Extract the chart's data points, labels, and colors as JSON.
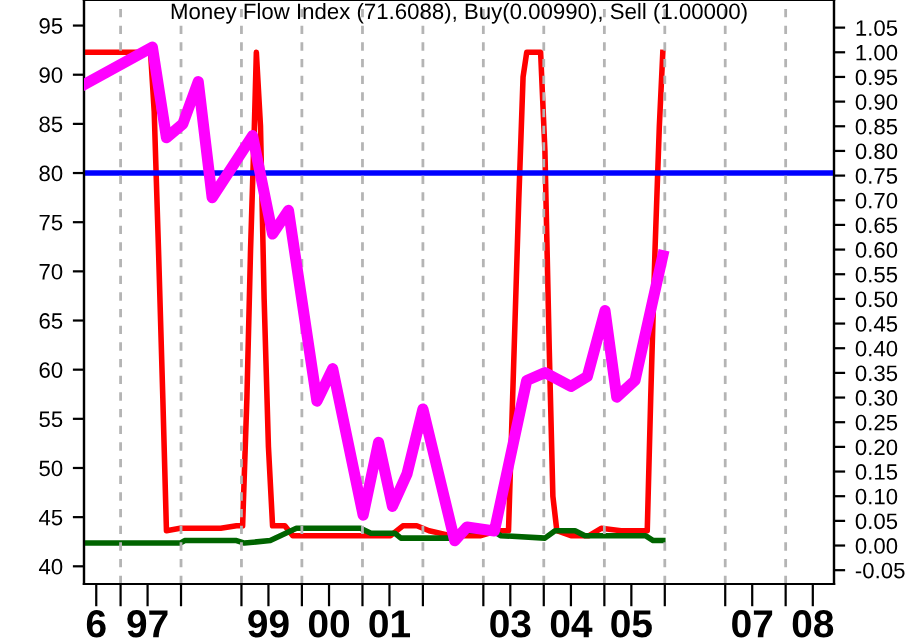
{
  "chart_data": {
    "type": "line",
    "title": "Money Flow Index (71.6088), Buy(0.00990), Sell (1.00000)",
    "xlim": [
      "1996-05-25",
      "2008-10-19"
    ],
    "ylim": [
      38.2,
      97.6
    ],
    "y2lim": [
      -0.078,
      1.106
    ],
    "xticks": [
      {
        "value": "1996-08-07",
        "label": "6"
      },
      {
        "value": "1997-01-01",
        "label": null
      },
      {
        "value": "1997-06-13",
        "label": "97"
      },
      {
        "value": "1998-01-01",
        "label": null
      },
      {
        "value": "1999-01-01",
        "label": null
      },
      {
        "value": "1999-06-13",
        "label": "99"
      },
      {
        "value": "2000-01-01",
        "label": null
      },
      {
        "value": "2000-06-13",
        "label": "00"
      },
      {
        "value": "2001-01-01",
        "label": null
      },
      {
        "value": "2001-06-13",
        "label": "01"
      },
      {
        "value": "2002-01-01",
        "label": null
      },
      {
        "value": "2003-01-01",
        "label": null
      },
      {
        "value": "2003-06-13",
        "label": "03"
      },
      {
        "value": "2004-01-01",
        "label": null
      },
      {
        "value": "2004-06-13",
        "label": "04"
      },
      {
        "value": "2005-01-01",
        "label": null
      },
      {
        "value": "2005-06-13",
        "label": "05"
      },
      {
        "value": "2006-01-01",
        "label": null
      },
      {
        "value": "2007-01-01",
        "label": null
      },
      {
        "value": "2007-06-13",
        "label": "07"
      },
      {
        "value": "2008-01-01",
        "label": null
      },
      {
        "value": "2008-06-13",
        "label": "08"
      }
    ],
    "yticks": [
      40,
      45,
      50,
      55,
      60,
      65,
      70,
      75,
      80,
      85,
      90,
      95
    ],
    "y2ticks": [
      {
        "value": -0.05,
        "label": "-0.05"
      },
      {
        "value": 0,
        "label": "0.00"
      },
      {
        "value": 0.05,
        "label": "0.05"
      },
      {
        "value": 0.1,
        "label": "0.10"
      },
      {
        "value": 0.15,
        "label": "0.15"
      },
      {
        "value": 0.2,
        "label": "0.20"
      },
      {
        "value": 0.25,
        "label": "0.25"
      },
      {
        "value": 0.3,
        "label": "0.30"
      },
      {
        "value": 0.35,
        "label": "0.35"
      },
      {
        "value": 0.4,
        "label": "0.40"
      },
      {
        "value": 0.45,
        "label": "0.45"
      },
      {
        "value": 0.5,
        "label": "0.50"
      },
      {
        "value": 0.55,
        "label": "0.55"
      },
      {
        "value": 0.6,
        "label": "0.60"
      },
      {
        "value": 0.65,
        "label": "0.65"
      },
      {
        "value": 0.7,
        "label": "0.70"
      },
      {
        "value": 0.75,
        "label": "0.75"
      },
      {
        "value": 0.8,
        "label": "0.80"
      },
      {
        "value": 0.85,
        "label": "0.85"
      },
      {
        "value": 0.9,
        "label": "0.90"
      },
      {
        "value": 0.95,
        "label": "0.95"
      },
      {
        "value": 1.0,
        "label": "1.00"
      },
      {
        "value": 1.05,
        "label": "1.05"
      }
    ],
    "ref_lines": [
      {
        "axis": "y",
        "value": 80,
        "color": "#0000ff",
        "line_style": "solid"
      },
      {
        "axis": "x",
        "value": "1997-01-01",
        "color": "#b4b4b4",
        "line_style": "dashed"
      },
      {
        "axis": "x",
        "value": "1998-01-01",
        "color": "#b4b4b4",
        "line_style": "dashed"
      },
      {
        "axis": "x",
        "value": "1999-01-01",
        "color": "#b4b4b4",
        "line_style": "dashed"
      },
      {
        "axis": "x",
        "value": "2000-01-01",
        "color": "#b4b4b4",
        "line_style": "dashed"
      },
      {
        "axis": "x",
        "value": "2001-01-01",
        "color": "#b4b4b4",
        "line_style": "dashed"
      },
      {
        "axis": "x",
        "value": "2002-01-01",
        "color": "#b4b4b4",
        "line_style": "dashed"
      },
      {
        "axis": "x",
        "value": "2003-01-01",
        "color": "#b4b4b4",
        "line_style": "dashed"
      },
      {
        "axis": "x",
        "value": "2004-01-01",
        "color": "#b4b4b4",
        "line_style": "dashed"
      },
      {
        "axis": "x",
        "value": "2005-01-01",
        "color": "#b4b4b4",
        "line_style": "dashed"
      },
      {
        "axis": "x",
        "value": "2006-01-01",
        "color": "#b4b4b4",
        "line_style": "dashed"
      },
      {
        "axis": "x",
        "value": "2007-01-01",
        "color": "#b4b4b4",
        "line_style": "dashed"
      },
      {
        "axis": "x",
        "value": "2008-01-01",
        "color": "#b4b4b4",
        "line_style": "dashed"
      }
    ],
    "grid": false,
    "marker": "none",
    "line_style": "solid",
    "series": [
      {
        "color": "#ff0000",
        "axis": "y2",
        "x": [
          "1996-05-25",
          "1997-07-01",
          "1997-07-23",
          "1997-08-18",
          "1997-09-13",
          "1997-10-05",
          "1997-12-27",
          "1998-04-26",
          "1998-08-29",
          "1998-12-02",
          "1999-01-08",
          "1999-02-03",
          "1999-02-25",
          "1999-03-20",
          "1999-04-01",
          "1999-04-26",
          "1999-05-18",
          "1999-06-13",
          "1999-07-08",
          "1999-09-20",
          "1999-11-07",
          "2000-10-23",
          "2001-06-20",
          "2001-09-02",
          "2001-11-25",
          "2002-02-07",
          "2002-06-17",
          "2002-12-17",
          "2003-03-24",
          "2003-06-02",
          "2003-06-27",
          "2003-08-03",
          "2003-08-29",
          "2003-09-20",
          "2003-12-13",
          "2004-01-08",
          "2004-02-03",
          "2004-02-25",
          "2004-03-20",
          "2004-06-13",
          "2004-10-01",
          "2004-12-13",
          "2005-04-12",
          "2005-09-17",
          "2005-10-08",
          "2005-11-03",
          "2005-11-29",
          "2005-12-20"
        ],
        "values": [
          1.0,
          1.0,
          0.88,
          0.6,
          0.3,
          0.03,
          0.035,
          0.035,
          0.035,
          0.04,
          0.04,
          0.3,
          0.6,
          0.85,
          1.0,
          0.85,
          0.5,
          0.2,
          0.04,
          0.04,
          0.02,
          0.02,
          0.02,
          0.04,
          0.04,
          0.03,
          0.02,
          0.02,
          0.03,
          0.03,
          0.3,
          0.7,
          0.95,
          1.0,
          1.0,
          0.8,
          0.4,
          0.1,
          0.03,
          0.02,
          0.02,
          0.035,
          0.03,
          0.03,
          0.3,
          0.6,
          0.85,
          1.0
        ]
      },
      {
        "color": "#006400",
        "axis": "y2",
        "x": [
          "1996-05-25",
          "1997-12-27",
          "1998-01-23",
          "1998-12-02",
          "1999-01-19",
          "1999-06-24",
          "1999-11-29",
          "2000-12-20",
          "2001-02-21",
          "2001-07-15",
          "2001-08-21",
          "2002-07-23",
          "2002-09-13",
          "2003-02-28",
          "2003-04-15",
          "2004-01-08",
          "2004-03-09",
          "2004-07-08",
          "2004-09-06",
          "2005-09-06",
          "2005-10-23",
          "2005-12-20"
        ],
        "values": [
          0.005,
          0.005,
          0.01,
          0.01,
          0.005,
          0.01,
          0.035,
          0.035,
          0.025,
          0.025,
          0.015,
          0.015,
          0.03,
          0.03,
          0.02,
          0.015,
          0.03,
          0.03,
          0.02,
          0.02,
          0.01,
          0.01
        ]
      },
      {
        "color": "#ff00ff",
        "x": [
          "1996-05-25",
          "1997-07-12",
          "1997-10-05",
          "1998-01-12",
          "1998-04-15",
          "1998-07-08",
          "1999-03-09",
          "1999-07-08",
          "1999-10-12",
          "2000-04-01",
          "2000-07-05",
          "2001-01-05",
          "2001-04-08",
          "2001-07-01",
          "2001-09-27",
          "2002-01-01",
          "2002-07-12",
          "2002-09-24",
          "2003-03-09",
          "2003-09-20",
          "2004-01-08",
          "2004-06-13",
          "2004-09-20",
          "2005-01-05",
          "2005-03-17",
          "2005-07-05",
          "2005-12-20"
        ],
        "values": [
          89.0,
          92.8,
          83.6,
          85.0,
          89.3,
          77.5,
          83.8,
          73.8,
          76.2,
          56.8,
          60.1,
          45.2,
          52.6,
          46.1,
          49.4,
          56.0,
          42.6,
          44.0,
          43.6,
          58.9,
          59.7,
          58.3,
          59.3,
          66.0,
          57.2,
          58.9,
          71.6
        ]
      }
    ]
  }
}
